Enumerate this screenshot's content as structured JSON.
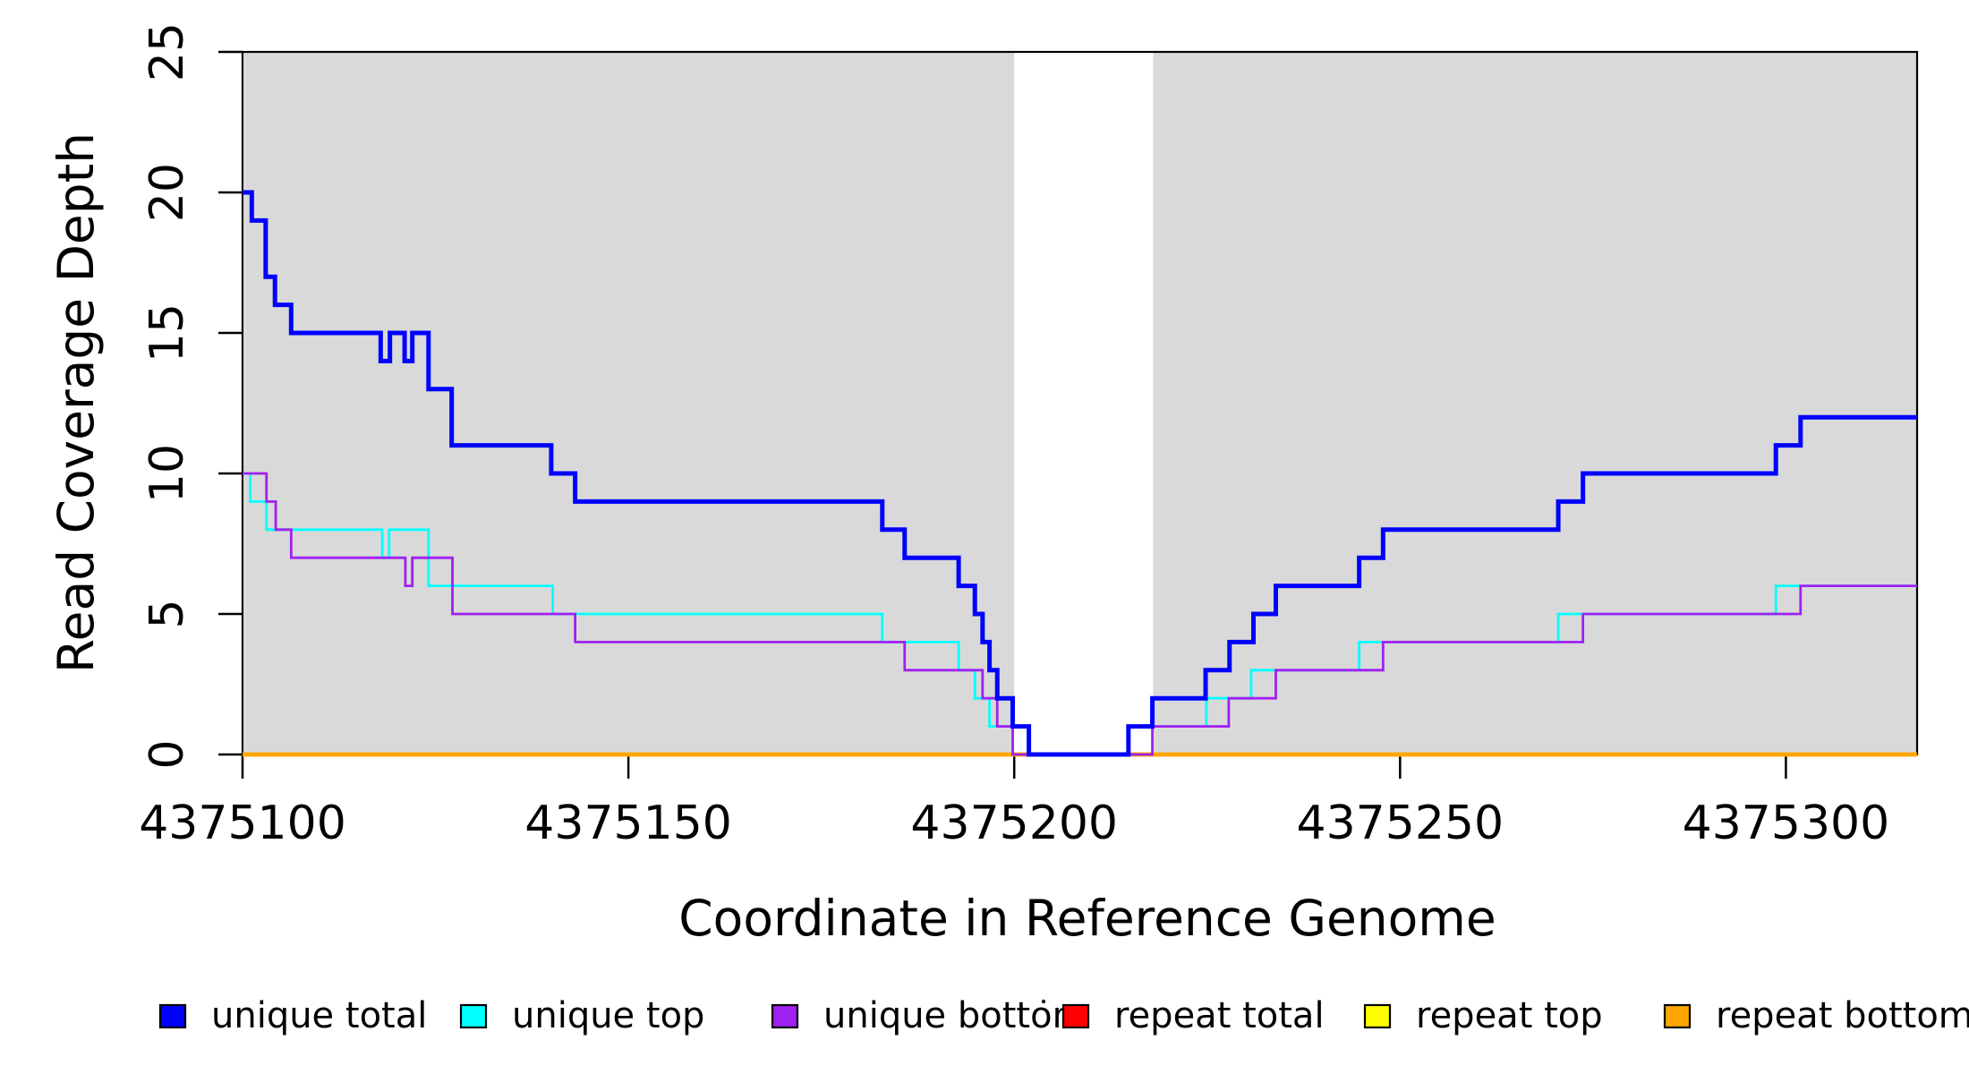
{
  "chart_data": {
    "type": "line",
    "subtype": "step-coverage-plot",
    "title": "",
    "xlabel": "Coordinate in Reference Genome",
    "ylabel": "Read Coverage Depth",
    "xlim": [
      4375100,
      4375317
    ],
    "ylim": [
      0,
      25
    ],
    "x_ticks": [
      4375100,
      4375150,
      4375200,
      4375250,
      4375300
    ],
    "x_tick_labels": [
      "4375100",
      "4375150",
      "4375200",
      "4375250",
      "4375300"
    ],
    "y_ticks": [
      0,
      5,
      10,
      15,
      20,
      25
    ],
    "y_tick_labels": [
      "0",
      "5",
      "10",
      "15",
      "20",
      "25"
    ],
    "grid": false,
    "legend_position": "bottom",
    "background_color": "#FFFFFF",
    "unique_region_color": "#D9D9D9",
    "shaded_regions": [
      {
        "name": "unique-mappability-left",
        "x0": 4375100.2,
        "x1": 4375200
      },
      {
        "name": "unique-mappability-right",
        "x0": 4375218,
        "x1": 4375317
      }
    ],
    "series": [
      {
        "id": "unique_total",
        "name": "unique total",
        "color": "#0000FF",
        "line_width": 5,
        "points": [
          [
            4375100,
            20
          ],
          [
            4375101.2,
            19
          ],
          [
            4375103,
            17
          ],
          [
            4375104.2,
            16
          ],
          [
            4375106.3,
            15
          ],
          [
            4375117.9,
            14
          ],
          [
            4375119.1,
            15
          ],
          [
            4375121,
            14
          ],
          [
            4375122,
            15
          ],
          [
            4375124.1,
            13
          ],
          [
            4375127.1,
            11
          ],
          [
            4375140,
            10
          ],
          [
            4375143.1,
            9
          ],
          [
            4375182.9,
            8
          ],
          [
            4375185.8,
            7
          ],
          [
            4375192.8,
            6
          ],
          [
            4375194.9,
            5
          ],
          [
            4375195.9,
            4
          ],
          [
            4375196.8,
            3
          ],
          [
            4375197.8,
            2
          ],
          [
            4375199.8,
            1
          ],
          [
            4375201.9,
            0
          ],
          [
            4375214.8,
            1
          ],
          [
            4375217.9,
            2
          ],
          [
            4375224.8,
            3
          ],
          [
            4375227.9,
            4
          ],
          [
            4375231,
            5
          ],
          [
            4375233.9,
            6
          ],
          [
            4375244.7,
            7
          ],
          [
            4375247.8,
            8
          ],
          [
            4375270.5,
            9
          ],
          [
            4375273.7,
            10
          ],
          [
            4375298.7,
            11
          ],
          [
            4375301.9,
            12
          ]
        ]
      },
      {
        "id": "unique_top",
        "name": "unique top",
        "color": "#00FFFF",
        "line_width": 2.8,
        "points": [
          [
            4375100,
            10
          ],
          [
            4375101,
            9
          ],
          [
            4375103.1,
            8
          ],
          [
            4375118.1,
            7
          ],
          [
            4375119,
            8
          ],
          [
            4375124.1,
            6
          ],
          [
            4375140.2,
            5
          ],
          [
            4375182.9,
            4
          ],
          [
            4375192.8,
            3
          ],
          [
            4375194.9,
            2
          ],
          [
            4375196.8,
            1
          ],
          [
            4375201.8,
            0
          ],
          [
            4375214.8,
            1
          ],
          [
            4375224.9,
            2
          ],
          [
            4375230.7,
            3
          ],
          [
            4375244.7,
            4
          ],
          [
            4375270.5,
            5
          ],
          [
            4375298.7,
            6
          ]
        ]
      },
      {
        "id": "unique_bottom",
        "name": "unique bottom",
        "color": "#A020F0",
        "line_width": 2.8,
        "points": [
          [
            4375100,
            10
          ],
          [
            4375103.1,
            9
          ],
          [
            4375104.3,
            8
          ],
          [
            4375106.3,
            7
          ],
          [
            4375121.1,
            6
          ],
          [
            4375122,
            7
          ],
          [
            4375127.2,
            5
          ],
          [
            4375143.1,
            4
          ],
          [
            4375185.8,
            3
          ],
          [
            4375195.9,
            2
          ],
          [
            4375197.8,
            1
          ],
          [
            4375199.8,
            0
          ],
          [
            4375217.9,
            1
          ],
          [
            4375227.8,
            2
          ],
          [
            4375233.9,
            3
          ],
          [
            4375247.8,
            4
          ],
          [
            4375273.7,
            5
          ],
          [
            4375301.9,
            6
          ]
        ]
      },
      {
        "id": "repeat_total",
        "name": "repeat total",
        "color": "#FF0000",
        "line_width": 4.5,
        "points": [
          [
            4375100,
            0
          ]
        ]
      },
      {
        "id": "repeat_top",
        "name": "repeat top",
        "color": "#FFFF00",
        "line_width": 4.5,
        "points": [
          [
            4375100,
            0
          ]
        ]
      },
      {
        "id": "repeat_bottom",
        "name": "repeat bottom",
        "color": "#FFA500",
        "line_width": 4.5,
        "points": [
          [
            4375100,
            0
          ]
        ]
      }
    ]
  },
  "legend": {
    "items": [
      {
        "label": "unique total",
        "color": "#0000FF"
      },
      {
        "label": "unique top",
        "color": "#00FFFF"
      },
      {
        "label": "unique bottom",
        "color": "#A020F0"
      },
      {
        "label": "repeat total",
        "color": "#FF0000"
      },
      {
        "label": "repeat top",
        "color": "#FFFF00"
      },
      {
        "label": "repeat bottom",
        "color": "#FFA500"
      }
    ]
  }
}
